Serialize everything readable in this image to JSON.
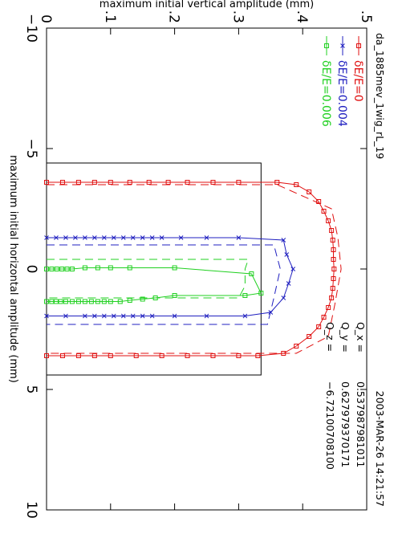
{
  "chart_data": {
    "type": "line",
    "plot_id": "da_1885mev_1wig_rL_19",
    "timestamp": "2003-MAR-26  14:21:57",
    "xlabel": "maximum initial horizontal amplitude (mm)",
    "ylabel": "maximum initial vertical amplitude (mm)",
    "xlim": [
      -10,
      10
    ],
    "ylim": [
      0,
      0.5
    ],
    "x_ticks": [
      "−10",
      "−5",
      "0",
      "5",
      "10"
    ],
    "y_ticks": [
      "0",
      ".1",
      ".2",
      ".3",
      ".4",
      ".5"
    ],
    "legend_position": "top-right",
    "tunes": [
      {
        "label": "Q_x  =",
        "value": "0.537987981011"
      },
      {
        "label": "Q_y  =",
        "value": "0.627979370171"
      },
      {
        "label": "Q_z  =",
        "value": "−6.72100708100"
      }
    ],
    "reference_box": {
      "x": [
        -4.4,
        4.4
      ],
      "y": [
        0,
        0.335
      ]
    },
    "series": [
      {
        "name": "δE/E=0",
        "color": "#e01010",
        "marker": "square",
        "x": [
          -3.6,
          -3.6,
          -3.6,
          -3.6,
          -3.6,
          -3.6,
          -3.6,
          -3.6,
          -3.6,
          -3.6,
          -3.6,
          -3.6,
          -3.5,
          -3.2,
          -2.8,
          -2.4,
          -2.0,
          -1.6,
          -1.2,
          -0.8,
          -0.4,
          0.0,
          0.4,
          0.8,
          1.2,
          1.6,
          2.0,
          2.4,
          2.8,
          3.2,
          3.5,
          3.6,
          3.6,
          3.6,
          3.6,
          3.6,
          3.6,
          3.6,
          3.6,
          3.6,
          3.6,
          3.6
        ],
        "y": [
          0.0,
          0.025,
          0.05,
          0.075,
          0.1,
          0.13,
          0.16,
          0.19,
          0.22,
          0.26,
          0.3,
          0.36,
          0.39,
          0.41,
          0.425,
          0.433,
          0.44,
          0.445,
          0.447,
          0.448,
          0.448,
          0.449,
          0.448,
          0.447,
          0.445,
          0.44,
          0.433,
          0.425,
          0.41,
          0.39,
          0.37,
          0.33,
          0.3,
          0.26,
          0.22,
          0.18,
          0.14,
          0.1,
          0.075,
          0.05,
          0.025,
          0.0
        ]
      },
      {
        "name": "δE/E=0.004",
        "color": "#2020c0",
        "marker": "x",
        "x": [
          -1.3,
          -1.3,
          -1.3,
          -1.3,
          -1.3,
          -1.3,
          -1.3,
          -1.3,
          -1.3,
          -1.3,
          -1.3,
          -1.3,
          -1.3,
          -1.3,
          -1.3,
          -1.3,
          -1.2,
          -0.6,
          0.0,
          0.6,
          1.2,
          1.8,
          1.95,
          1.95,
          1.95,
          1.95,
          1.95,
          1.95,
          1.95,
          1.95,
          1.95,
          1.95,
          1.95,
          1.95,
          1.95
        ],
        "y": [
          0.0,
          0.015,
          0.03,
          0.045,
          0.06,
          0.075,
          0.09,
          0.105,
          0.12,
          0.135,
          0.15,
          0.165,
          0.18,
          0.21,
          0.25,
          0.3,
          0.37,
          0.375,
          0.385,
          0.378,
          0.37,
          0.35,
          0.31,
          0.25,
          0.2,
          0.165,
          0.15,
          0.135,
          0.12,
          0.105,
          0.09,
          0.075,
          0.06,
          0.03,
          0.0
        ]
      },
      {
        "name": "δE/E=0.006",
        "color": "#20d020",
        "marker": "square",
        "x": [
          0.0,
          0.0,
          0.0,
          0.0,
          0.0,
          0.0,
          -0.05,
          -0.05,
          -0.05,
          -0.05,
          -0.05,
          0.2,
          1.0,
          1.1,
          1.1,
          1.2,
          1.25,
          1.3,
          1.35,
          1.35,
          1.35,
          1.35,
          1.35,
          1.35,
          1.35,
          1.35,
          1.35,
          1.35,
          1.35,
          1.35,
          1.35
        ],
        "y": [
          0.0,
          0.008,
          0.016,
          0.024,
          0.032,
          0.04,
          0.06,
          0.08,
          0.1,
          0.13,
          0.2,
          0.32,
          0.335,
          0.31,
          0.2,
          0.17,
          0.15,
          0.13,
          0.115,
          0.1,
          0.09,
          0.08,
          0.07,
          0.06,
          0.05,
          0.04,
          0.03,
          0.022,
          0.015,
          0.008,
          0.0
        ]
      }
    ],
    "envelopes": [
      {
        "series": "δE/E=0",
        "color": "#e01010",
        "x": [
          -3.5,
          -3.5,
          -2.5,
          -1.3,
          0.0,
          1.5,
          2.8,
          3.5,
          3.5
        ],
        "y": [
          0.0,
          0.36,
          0.445,
          0.455,
          0.46,
          0.45,
          0.44,
          0.39,
          0.0
        ]
      },
      {
        "series": "δE/E=0.004",
        "color": "#2020c0",
        "x": [
          -1.0,
          -1.0,
          0.0,
          1.2,
          2.3,
          2.3
        ],
        "y": [
          0.0,
          0.355,
          0.365,
          0.355,
          0.345,
          0.0
        ]
      },
      {
        "series": "δE/E=0.006",
        "color": "#20d020",
        "x": [
          -0.4,
          -0.4,
          0.0,
          0.7,
          1.2,
          1.2
        ],
        "y": [
          0.0,
          0.315,
          0.31,
          0.31,
          0.3,
          0.0
        ]
      }
    ]
  }
}
